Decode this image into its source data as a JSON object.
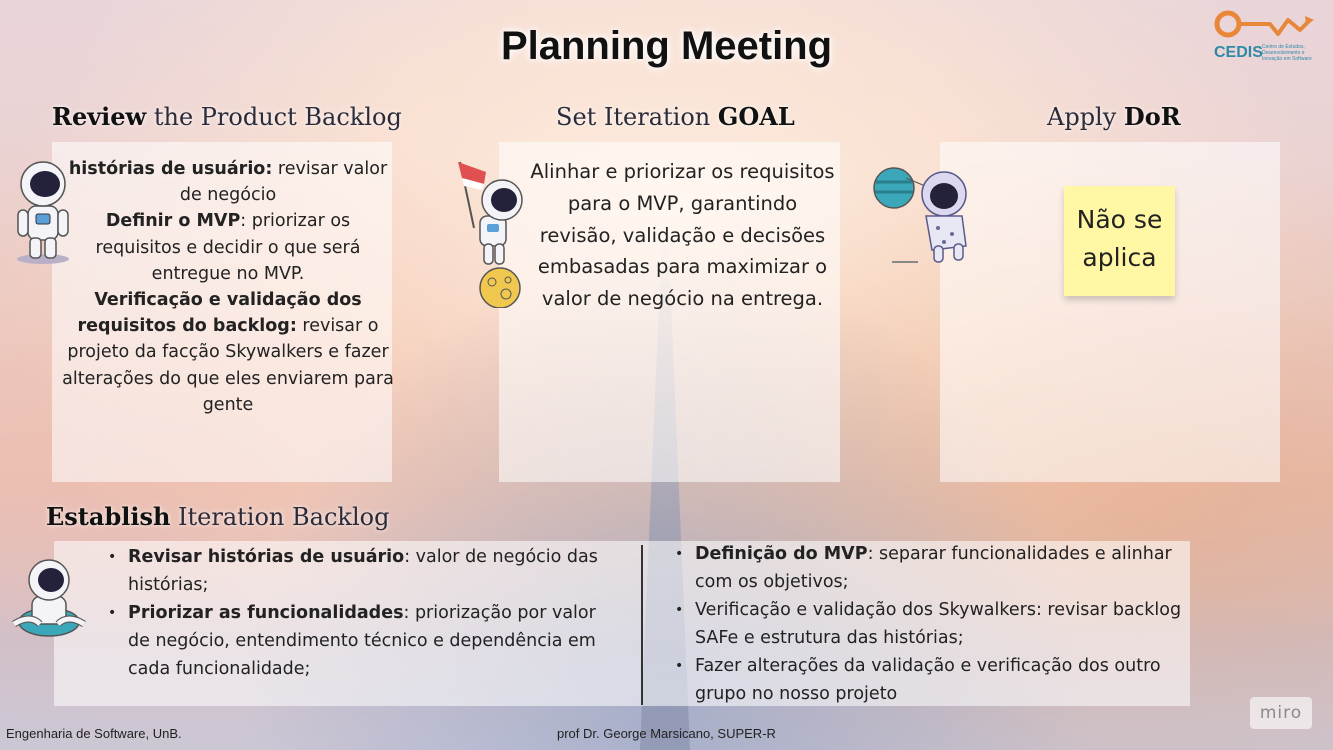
{
  "title": "Planning Meeting",
  "logo": {
    "name": "CEDIS",
    "subtitle": "Centro de Estudos, Desenvolvimento e Inovação em Software"
  },
  "sections": {
    "review": {
      "title_bold": "Review",
      "title_rest": " the Product Backlog",
      "items": [
        {
          "bold": "histórias de usuário:",
          "text": " revisar valor de negócio"
        },
        {
          "bold": "Definir o MVP",
          "text": ": priorizar os requisitos e decidir o que será entregue no MVP."
        },
        {
          "bold": "Verificação e validação dos requisitos do backlog:",
          "text": " revisar o projeto da facção Skywalkers e fazer alterações do que eles enviarem para gente"
        }
      ]
    },
    "goal": {
      "title_rest": "Set Iteration ",
      "title_bold": "GOAL",
      "text": "Alinhar e priorizar os requisitos para o MVP, garantindo revisão, validação e decisões embasadas para maximizar o valor de negócio na entrega."
    },
    "dor": {
      "title_rest": "Apply ",
      "title_bold": "DoR",
      "sticky_note": "Não se aplica"
    },
    "establish": {
      "title_bold": "Establish",
      "title_rest": " Iteration Backlog",
      "left_items": [
        {
          "bold": "Revisar histórias de usuário",
          "text": ": valor de negócio das histórias;"
        },
        {
          "bold": "Priorizar as funcionalidades",
          "text": ": priorização por valor de negócio, entendimento técnico e dependência em cada funcionalidade;"
        }
      ],
      "right_items": [
        {
          "bold": "Definição do MVP",
          "text": ": separar funcionalidades e alinhar com os objetivos;"
        },
        {
          "bold": "",
          "text": "Verificação e validação dos Skywalkers: revisar backlog SAFe e estrutura das histórias;"
        },
        {
          "bold": "",
          "text": "Fazer alterações da validação e verificação dos outro grupo no nosso projeto"
        }
      ]
    }
  },
  "footer": {
    "left": "Engenharia de Software, UnB.",
    "center": "prof Dr. George Marsicano, SUPER-R"
  },
  "watermark": "miro",
  "colors": {
    "sticky": "#fff7a3",
    "logo_orange": "#e8873a",
    "logo_teal": "#2f8aa8"
  }
}
